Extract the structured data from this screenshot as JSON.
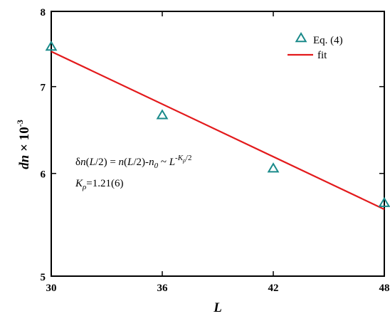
{
  "chart_data": {
    "type": "scatter",
    "x_axis": {
      "label": "L",
      "range": [
        30,
        48
      ],
      "ticks": [
        30,
        36,
        42,
        48
      ],
      "tick_labels": [
        "30",
        "36",
        "42",
        "48"
      ]
    },
    "y_axis": {
      "label_main": "dn",
      "label_factor": " × 10",
      "label_exponent": "-3",
      "scale": "log",
      "range": [
        5,
        8
      ],
      "ticks": [
        5,
        6,
        7,
        8
      ],
      "tick_labels": [
        "5",
        "6",
        "7",
        "8"
      ]
    },
    "series": [
      {
        "name": "Eq. (4)",
        "marker": "triangle-open",
        "color": "#1a8a8a",
        "points": [
          {
            "x": 30,
            "y": 7.51
          },
          {
            "x": 36,
            "y": 6.65
          },
          {
            "x": 42,
            "y": 6.05
          },
          {
            "x": 48,
            "y": 5.69
          }
        ]
      },
      {
        "name": "fit",
        "type": "line",
        "color": "#e31a1c",
        "points": [
          {
            "x": 30,
            "y": 7.45
          },
          {
            "x": 48,
            "y": 5.63
          }
        ]
      }
    ],
    "legend": {
      "placement": "top-right",
      "entries": [
        "Eq. (4)",
        "fit"
      ]
    },
    "annotation": {
      "line1": "δn(L/2) = n(L/2)-n0 ~ L-Kρ/2",
      "line2": "Kρ=1.21(6)"
    },
    "grid": false
  }
}
